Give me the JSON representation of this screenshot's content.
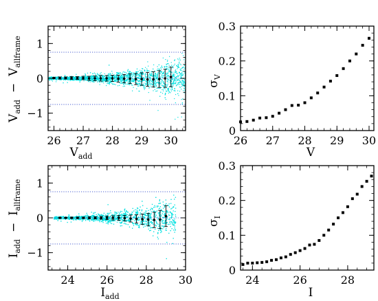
{
  "chart_data": [
    {
      "type": "scatter",
      "id": "v-residual",
      "xlabel": {
        "main": "V",
        "sub": "add"
      },
      "ylabel": {
        "main1": "V",
        "sub1": "add",
        "minus": "−",
        "main2": "V",
        "sub2": "allframe"
      },
      "xlim": [
        25.8,
        30.5
      ],
      "ylim": [
        -1.5,
        1.5
      ],
      "xticks": [
        26,
        27,
        28,
        29,
        30
      ],
      "xtick_labels": [
        "26",
        "27",
        "28",
        "29",
        "30"
      ],
      "yticks": [
        -1,
        0,
        1
      ],
      "ytick_labels": [
        "−1",
        "0",
        "1"
      ],
      "reference_lines": [
        0.75,
        -0.75
      ],
      "cloud": {
        "x_start": 25.8,
        "x_end": 30.5,
        "color": "#00e0e0"
      },
      "binned": {
        "x": [
          26.0,
          26.2,
          26.4,
          26.6,
          26.8,
          27.0,
          27.2,
          27.4,
          27.6,
          27.8,
          28.0,
          28.2,
          28.4,
          28.6,
          28.8,
          29.0,
          29.2,
          29.4,
          29.6,
          29.8,
          30.0
        ],
        "y": [
          0.01,
          0.01,
          0.01,
          0.01,
          0.01,
          0.01,
          0.0,
          0.0,
          0.0,
          0.0,
          0.0,
          -0.01,
          -0.01,
          -0.01,
          -0.02,
          -0.02,
          -0.03,
          -0.03,
          -0.02,
          0.0,
          0.04
        ],
        "err": [
          0.02,
          0.03,
          0.03,
          0.04,
          0.04,
          0.05,
          0.06,
          0.07,
          0.08,
          0.08,
          0.09,
          0.1,
          0.12,
          0.14,
          0.16,
          0.18,
          0.2,
          0.22,
          0.24,
          0.26,
          0.28
        ]
      }
    },
    {
      "type": "scatter",
      "id": "sigma-v",
      "xlabel": {
        "main": "V",
        "sub": ""
      },
      "ylabel": {
        "main": "σ",
        "sub": "V"
      },
      "xlim": [
        26,
        30.15
      ],
      "ylim": [
        0,
        0.3
      ],
      "xticks": [
        26,
        27,
        28,
        29,
        30
      ],
      "xtick_labels": [
        "26",
        "27",
        "28",
        "29",
        "30"
      ],
      "yticks": [
        0,
        0.1,
        0.2,
        0.3
      ],
      "ytick_labels": [
        "0",
        "0.1",
        "0.2",
        "0.3"
      ],
      "points": {
        "x": [
          26.0,
          26.2,
          26.4,
          26.6,
          26.8,
          27.0,
          27.2,
          27.4,
          27.6,
          27.8,
          28.0,
          28.2,
          28.4,
          28.6,
          28.8,
          29.0,
          29.2,
          29.4,
          29.6,
          29.8,
          30.0
        ],
        "y": [
          0.025,
          0.026,
          0.03,
          0.036,
          0.037,
          0.041,
          0.05,
          0.06,
          0.072,
          0.073,
          0.08,
          0.094,
          0.108,
          0.125,
          0.142,
          0.158,
          0.178,
          0.2,
          0.22,
          0.245,
          0.265
        ]
      }
    },
    {
      "type": "scatter",
      "id": "i-residual",
      "xlabel": {
        "main": "I",
        "sub": "add"
      },
      "ylabel": {
        "main1": "I",
        "sub1": "add",
        "minus": "−",
        "main2": "I",
        "sub2": "allframe"
      },
      "xlim": [
        23,
        30
      ],
      "ylim": [
        -1.5,
        1.5
      ],
      "xticks": [
        24,
        26,
        28,
        30
      ],
      "xtick_labels": [
        "24",
        "26",
        "28",
        "30"
      ],
      "yticks": [
        -1,
        0,
        1
      ],
      "ytick_labels": [
        "−1",
        "0",
        "1"
      ],
      "reference_lines": [
        0.75,
        -0.75
      ],
      "cloud": {
        "x_start": 23.3,
        "x_end": 29.5,
        "color": "#00e0e0"
      },
      "binned": {
        "x": [
          23.6,
          23.9,
          24.2,
          24.5,
          24.8,
          25.1,
          25.4,
          25.7,
          26.0,
          26.3,
          26.6,
          26.9,
          27.2,
          27.5,
          27.8,
          28.1,
          28.4,
          28.7,
          29.0
        ],
        "y": [
          0.0,
          0.0,
          0.0,
          0.0,
          0.0,
          0.0,
          0.0,
          0.0,
          0.0,
          0.0,
          0.0,
          -0.01,
          -0.02,
          -0.03,
          -0.04,
          -0.05,
          -0.06,
          -0.05,
          0.05
        ],
        "err": [
          0.01,
          0.01,
          0.02,
          0.02,
          0.02,
          0.03,
          0.03,
          0.04,
          0.05,
          0.06,
          0.07,
          0.08,
          0.1,
          0.12,
          0.15,
          0.18,
          0.22,
          0.26,
          0.3
        ]
      }
    },
    {
      "type": "scatter",
      "id": "sigma-i",
      "xlabel": {
        "main": "I",
        "sub": ""
      },
      "ylabel": {
        "main": "σ",
        "sub": "I"
      },
      "xlim": [
        23.5,
        29.1
      ],
      "ylim": [
        0,
        0.3
      ],
      "xticks": [
        24,
        26,
        28
      ],
      "xtick_labels": [
        "24",
        "26",
        "28"
      ],
      "yticks": [
        0,
        0.1,
        0.2,
        0.3
      ],
      "ytick_labels": [
        "0",
        "0.1",
        "0.2",
        "0.3"
      ],
      "points": {
        "x": [
          23.6,
          23.8,
          24.0,
          24.2,
          24.4,
          24.6,
          24.8,
          25.0,
          25.2,
          25.4,
          25.6,
          25.8,
          26.0,
          26.2,
          26.4,
          26.6,
          26.8,
          27.0,
          27.2,
          27.4,
          27.6,
          27.8,
          28.0,
          28.2,
          28.4,
          28.6,
          28.8,
          29.0
        ],
        "y": [
          0.016,
          0.02,
          0.02,
          0.021,
          0.022,
          0.024,
          0.028,
          0.03,
          0.035,
          0.038,
          0.045,
          0.05,
          0.056,
          0.062,
          0.072,
          0.074,
          0.085,
          0.1,
          0.115,
          0.132,
          0.15,
          0.165,
          0.182,
          0.205,
          0.218,
          0.24,
          0.255,
          0.27
        ]
      }
    }
  ]
}
